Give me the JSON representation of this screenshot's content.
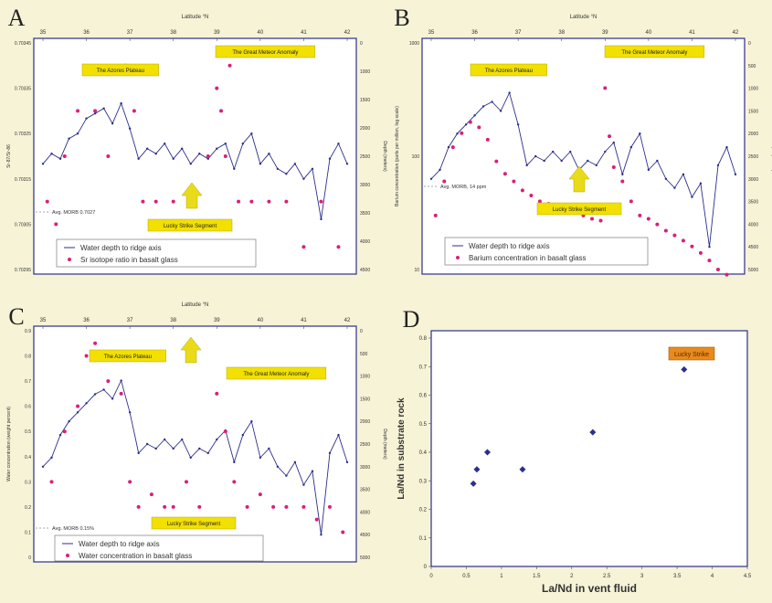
{
  "colors": {
    "page_bg": "#f6f3d6",
    "plot_bg": "#ffffff",
    "depth_line": "#2b2f8c",
    "scatter": "#d8207a",
    "label_box": "#f2e000",
    "orange_box": "#e88a1c",
    "arrow": "#eadb1a",
    "frame": "#2b2f8c"
  },
  "panels": [
    {
      "letter": "A"
    },
    {
      "letter": "B"
    },
    {
      "letter": "C"
    },
    {
      "letter": "D"
    }
  ],
  "chart_data": [
    {
      "type": "line",
      "panel": "A",
      "xlabel": "Latitude °N",
      "x_ticks": [
        "35",
        "36",
        "37",
        "38",
        "39",
        "40",
        "41",
        "42"
      ],
      "ylabel_left": "Sr-87/Sr-86",
      "ylabel_right": "Depth (meters)",
      "y_ticks_left": [
        "0.70345",
        "0.70335",
        "0.70325",
        "0.70315",
        "0.70305",
        "0.70295"
      ],
      "y_ticks_right": [
        "0",
        "1000",
        "1500",
        "2000",
        "2500",
        "3000",
        "3500",
        "4000",
        "4500"
      ],
      "annotations": [
        "The Azores Plateau",
        "The Great Meteor Anomaly",
        "Lucky Strike Segment"
      ],
      "reference_text": "Avg. MORB 0.7027",
      "legend": [
        "Water depth to ridge axis",
        "Sr isotope ratio in basalt glass"
      ],
      "series": [
        {
          "name": "Water depth to ridge axis",
          "x": [
            35.0,
            35.2,
            35.4,
            35.6,
            35.8,
            36.0,
            36.2,
            36.4,
            36.6,
            36.8,
            37.0,
            37.2,
            37.4,
            37.6,
            37.8,
            38.0,
            38.2,
            38.4,
            38.6,
            38.8,
            39.0,
            39.2,
            39.4,
            39.6,
            39.8,
            40.0,
            40.2,
            40.4,
            40.6,
            40.8,
            41.0,
            41.2,
            41.4,
            41.6,
            41.8,
            42.0
          ],
          "values": [
            2400,
            2200,
            2300,
            1900,
            1800,
            1500,
            1400,
            1300,
            1600,
            1200,
            1700,
            2300,
            2100,
            2200,
            2000,
            2300,
            2100,
            2400,
            2200,
            2300,
            2100,
            2000,
            2500,
            2000,
            1800,
            2400,
            2200,
            2500,
            2600,
            2400,
            2700,
            2500,
            3500,
            2300,
            2000,
            2400
          ]
        },
        {
          "name": "Sr isotope ratio in basalt glass",
          "x": [
            35.1,
            35.3,
            35.5,
            35.8,
            36.2,
            36.5,
            36.9,
            37.1,
            37.3,
            37.6,
            38.0,
            38.4,
            38.8,
            39.0,
            39.1,
            39.2,
            39.3,
            39.5,
            39.8,
            40.2,
            40.6,
            41.0,
            41.4,
            41.8
          ],
          "values": [
            0.7031,
            0.70305,
            0.7032,
            0.7033,
            0.7033,
            0.7032,
            0.7034,
            0.7033,
            0.7031,
            0.7031,
            0.7031,
            0.7031,
            0.7032,
            0.70335,
            0.7033,
            0.7032,
            0.7034,
            0.7031,
            0.7031,
            0.7031,
            0.7031,
            0.703,
            0.7031,
            0.703
          ]
        }
      ]
    },
    {
      "type": "line",
      "panel": "B",
      "xlabel": "Latitude °N",
      "x_ticks": [
        "35",
        "36",
        "37",
        "38",
        "39",
        "40",
        "41",
        "42"
      ],
      "ylabel_left": "Barium concentration (parts per million, log scale)",
      "ylabel_right": "Depth (meters)",
      "y_ticks_left": [
        "1000",
        "100",
        "10"
      ],
      "y_ticks_right": [
        "0",
        "500",
        "1000",
        "1500",
        "2000",
        "2500",
        "3000",
        "3500",
        "4000",
        "4500",
        "5000"
      ],
      "annotations": [
        "The Azores Plateau",
        "The Great Meteor Anomaly",
        "Lucky Strike Segment"
      ],
      "reference_text": "Avg. MORB, 14 ppm",
      "legend": [
        "Water depth to ridge axis",
        "Barium concentration in basalt glass"
      ],
      "series": [
        {
          "name": "Water depth to ridge axis",
          "x": [
            35.0,
            35.2,
            35.4,
            35.6,
            35.8,
            36.0,
            36.2,
            36.4,
            36.6,
            36.8,
            37.0,
            37.2,
            37.4,
            37.6,
            37.8,
            38.0,
            38.2,
            38.4,
            38.6,
            38.8,
            39.0,
            39.2,
            39.4,
            39.6,
            39.8,
            40.0,
            40.2,
            40.4,
            40.6,
            40.8,
            41.0,
            41.2,
            41.4,
            41.6,
            41.8,
            42.0
          ],
          "values": [
            3000,
            2800,
            2300,
            2000,
            1800,
            1600,
            1400,
            1300,
            1500,
            1100,
            1800,
            2700,
            2500,
            2600,
            2400,
            2600,
            2400,
            2800,
            2600,
            2700,
            2400,
            2200,
            2900,
            2300,
            2000,
            2800,
            2600,
            3000,
            3200,
            2900,
            3400,
            3100,
            4500,
            2700,
            2300,
            2900
          ]
        },
        {
          "name": "Barium concentration in basalt glass",
          "x": [
            35.1,
            35.3,
            35.5,
            35.7,
            35.9,
            36.1,
            36.3,
            36.5,
            36.7,
            36.9,
            37.1,
            37.3,
            37.5,
            37.7,
            37.9,
            38.1,
            38.3,
            38.5,
            38.7,
            38.9,
            39.0,
            39.1,
            39.2,
            39.4,
            39.6,
            39.8,
            40.0,
            40.2,
            40.4,
            40.6,
            40.8,
            41.0,
            41.2,
            41.4,
            41.6,
            41.8
          ],
          "values": [
            30,
            60,
            120,
            160,
            200,
            180,
            140,
            90,
            70,
            60,
            50,
            45,
            40,
            38,
            36,
            34,
            32,
            30,
            28,
            27,
            400,
            150,
            80,
            60,
            40,
            30,
            28,
            25,
            22,
            20,
            18,
            16,
            14,
            12,
            10,
            9
          ]
        }
      ]
    },
    {
      "type": "line",
      "panel": "C",
      "xlabel": "Latitude °N",
      "x_ticks": [
        "35",
        "36",
        "37",
        "38",
        "39",
        "40",
        "41",
        "42"
      ],
      "ylabel_left": "Water concentration (weight percent)",
      "ylabel_right": "Depth (meters)",
      "y_ticks_left": [
        "0.9",
        "0.8",
        "0.7",
        "0.6",
        "0.5",
        "0.4",
        "0.3",
        "0.2",
        "0.1",
        "0"
      ],
      "y_ticks_right": [
        "0",
        "500",
        "1000",
        "1500",
        "2000",
        "2500",
        "3000",
        "3500",
        "4000",
        "4500",
        "5000"
      ],
      "annotations": [
        "The Azores Plateau",
        "The Great Meteor Anomaly",
        "Lucky Strike Segment"
      ],
      "reference_text": "Avg. MORB 0.15%",
      "legend": [
        "Water depth to ridge axis",
        "Water concentration in basalt glass"
      ],
      "series": [
        {
          "name": "Water depth to ridge axis",
          "x": [
            35.0,
            35.2,
            35.4,
            35.6,
            35.8,
            36.0,
            36.2,
            36.4,
            36.6,
            36.8,
            37.0,
            37.2,
            37.4,
            37.6,
            37.8,
            38.0,
            38.2,
            38.4,
            38.6,
            38.8,
            39.0,
            39.2,
            39.4,
            39.6,
            39.8,
            40.0,
            40.2,
            40.4,
            40.6,
            40.8,
            41.0,
            41.2,
            41.4,
            41.6,
            41.8,
            42.0
          ],
          "values": [
            3000,
            2800,
            2300,
            2000,
            1800,
            1600,
            1400,
            1300,
            1500,
            1100,
            1800,
            2700,
            2500,
            2600,
            2400,
            2600,
            2400,
            2800,
            2600,
            2700,
            2400,
            2200,
            2900,
            2300,
            2000,
            2800,
            2600,
            3000,
            3200,
            2900,
            3400,
            3100,
            4500,
            2700,
            2300,
            2900
          ]
        },
        {
          "name": "Water concentration in basalt glass",
          "x": [
            35.2,
            35.5,
            35.8,
            36.0,
            36.2,
            36.5,
            36.8,
            37.0,
            37.2,
            37.5,
            37.8,
            38.0,
            38.3,
            38.6,
            39.0,
            39.2,
            39.4,
            39.7,
            40.0,
            40.3,
            40.6,
            41.0,
            41.3,
            41.6,
            41.9
          ],
          "values": [
            0.3,
            0.5,
            0.6,
            0.8,
            0.85,
            0.7,
            0.65,
            0.3,
            0.2,
            0.25,
            0.2,
            0.2,
            0.3,
            0.2,
            0.65,
            0.5,
            0.3,
            0.2,
            0.25,
            0.2,
            0.2,
            0.2,
            0.15,
            0.2,
            0.1
          ]
        }
      ]
    },
    {
      "type": "scatter",
      "panel": "D",
      "xlabel": "La/Nd in vent fluid",
      "ylabel": "La/Nd in substrate rock",
      "x_ticks": [
        "0",
        "0.5",
        "1",
        "1.5",
        "2",
        "2.5",
        "3",
        "3.5",
        "4",
        "4.5"
      ],
      "y_ticks": [
        "0.8",
        "0.7",
        "0.6",
        "0.5",
        "0.4",
        "0.3",
        "0.2",
        "0.1",
        "0"
      ],
      "xlim": [
        0,
        4.5
      ],
      "ylim": [
        0,
        0.8
      ],
      "annotation": "Lucky Strike",
      "series": [
        {
          "x": [
            0.6,
            0.65,
            0.8,
            1.3,
            2.3,
            3.6
          ],
          "values": [
            0.29,
            0.34,
            0.4,
            0.34,
            0.47,
            0.69
          ]
        }
      ]
    }
  ]
}
